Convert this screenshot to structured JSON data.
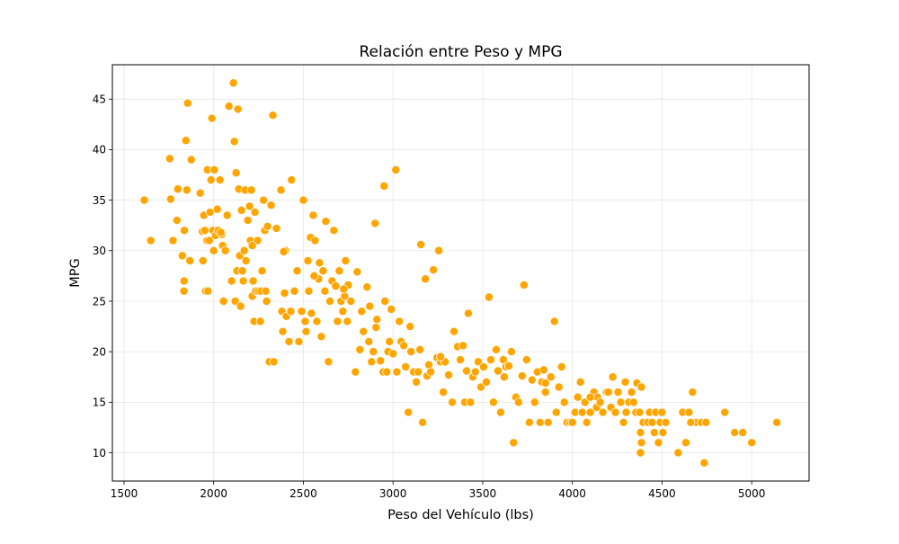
{
  "chart_data": {
    "type": "scatter",
    "title": "Relación entre Peso y MPG",
    "xlabel": "Peso del Vehículo (lbs)",
    "ylabel": "MPG",
    "xlim": [
      1435,
      5320
    ],
    "ylim": [
      7.2,
      48.4
    ],
    "xticks": [
      1500,
      2000,
      2500,
      3000,
      3500,
      4000,
      4500,
      5000
    ],
    "yticks": [
      10,
      15,
      20,
      25,
      30,
      35,
      40,
      45
    ],
    "grid": true,
    "legend": "none",
    "marker_color": "#FFA500",
    "marker_edge_color": "#ffffff",
    "points": [
      [
        1613,
        35
      ],
      [
        1649,
        31
      ],
      [
        1755,
        39.1
      ],
      [
        1760,
        35.1
      ],
      [
        1773,
        31
      ],
      [
        1795,
        33
      ],
      [
        1800,
        36.1
      ],
      [
        1825,
        29.5
      ],
      [
        1834,
        26
      ],
      [
        1835,
        27
      ],
      [
        1836,
        32
      ],
      [
        1845,
        40.9
      ],
      [
        1850,
        36
      ],
      [
        1855,
        44.6
      ],
      [
        1867,
        29
      ],
      [
        1875,
        39
      ],
      [
        1925,
        35.7
      ],
      [
        1937,
        31.9
      ],
      [
        1940,
        29
      ],
      [
        1945,
        33.5
      ],
      [
        1950,
        32
      ],
      [
        1955,
        26
      ],
      [
        1963,
        31
      ],
      [
        1965,
        38
      ],
      [
        1968,
        26
      ],
      [
        1975,
        31
      ],
      [
        1980,
        33.8
      ],
      [
        1985,
        37
      ],
      [
        1990,
        43.1
      ],
      [
        1995,
        32
      ],
      [
        2000,
        30
      ],
      [
        2003,
        38
      ],
      [
        2010,
        31.5
      ],
      [
        2020,
        34.1
      ],
      [
        2025,
        32
      ],
      [
        2035,
        37
      ],
      [
        2045,
        31.6
      ],
      [
        2050,
        30.5
      ],
      [
        2055,
        25
      ],
      [
        2065,
        30
      ],
      [
        2075,
        33.5
      ],
      [
        2085,
        44.3
      ],
      [
        2100,
        27
      ],
      [
        2110,
        46.6
      ],
      [
        2115,
        40.8
      ],
      [
        2120,
        25
      ],
      [
        2125,
        37.7
      ],
      [
        2130,
        28
      ],
      [
        2135,
        44
      ],
      [
        2140,
        36.1
      ],
      [
        2145,
        29.5
      ],
      [
        2150,
        24.5
      ],
      [
        2155,
        34
      ],
      [
        2160,
        28
      ],
      [
        2165,
        27
      ],
      [
        2170,
        30
      ],
      [
        2175,
        36
      ],
      [
        2180,
        29
      ],
      [
        2190,
        33
      ],
      [
        2200,
        34.4
      ],
      [
        2205,
        31
      ],
      [
        2210,
        36
      ],
      [
        2215,
        25.5
      ],
      [
        2220,
        27
      ],
      [
        2225,
        23
      ],
      [
        2230,
        33.8
      ],
      [
        2234,
        26
      ],
      [
        2245,
        31
      ],
      [
        2250,
        26
      ],
      [
        2260,
        23
      ],
      [
        2265,
        26
      ],
      [
        2270,
        28
      ],
      [
        2278,
        35
      ],
      [
        2285,
        32
      ],
      [
        2290,
        26
      ],
      [
        2295,
        25
      ],
      [
        2300,
        32.4
      ],
      [
        2310,
        19
      ],
      [
        2320,
        34.5
      ],
      [
        2330,
        43.4
      ],
      [
        2335,
        19
      ],
      [
        2350,
        32.2
      ],
      [
        2375,
        36
      ],
      [
        2380,
        24
      ],
      [
        2385,
        22
      ],
      [
        2395,
        25.8
      ],
      [
        2400,
        30
      ],
      [
        2405,
        23.5
      ],
      [
        2420,
        21
      ],
      [
        2430,
        24
      ],
      [
        2434,
        37
      ],
      [
        2450,
        26
      ],
      [
        2465,
        28
      ],
      [
        2475,
        21
      ],
      [
        2490,
        24
      ],
      [
        2500,
        35
      ],
      [
        2510,
        23
      ],
      [
        2515,
        22
      ],
      [
        2525,
        29
      ],
      [
        2530,
        26
      ],
      [
        2540,
        31.3
      ],
      [
        2545,
        23.8
      ],
      [
        2555,
        33.5
      ],
      [
        2565,
        31
      ],
      [
        2575,
        23
      ],
      [
        2585,
        27.2
      ],
      [
        2590,
        28.8
      ],
      [
        2600,
        21.5
      ],
      [
        2610,
        28
      ],
      [
        2620,
        26
      ],
      [
        2625,
        32.9
      ],
      [
        2640,
        19
      ],
      [
        2648,
        25
      ],
      [
        2660,
        27
      ],
      [
        2670,
        32
      ],
      [
        2680,
        26.5
      ],
      [
        2690,
        23
      ],
      [
        2700,
        28
      ],
      [
        2710,
        25
      ],
      [
        2720,
        24
      ],
      [
        2730,
        25.5
      ],
      [
        2735,
        29
      ],
      [
        2745,
        23
      ],
      [
        2750,
        26.6
      ],
      [
        2765,
        25
      ],
      [
        2790,
        18
      ],
      [
        2800,
        27.9
      ],
      [
        2815,
        20.2
      ],
      [
        2825,
        24
      ],
      [
        2835,
        22
      ],
      [
        2855,
        26.4
      ],
      [
        2865,
        21
      ],
      [
        2870,
        24.5
      ],
      [
        2880,
        19
      ],
      [
        2890,
        20
      ],
      [
        2900,
        32.7
      ],
      [
        2905,
        22.4
      ],
      [
        2910,
        23.2
      ],
      [
        2930,
        19.1
      ],
      [
        2945,
        18
      ],
      [
        2950,
        36.4
      ],
      [
        2955,
        25
      ],
      [
        2965,
        18
      ],
      [
        2972,
        20
      ],
      [
        2980,
        21
      ],
      [
        3000,
        19.8
      ],
      [
        3015,
        38
      ],
      [
        3021,
        18
      ],
      [
        3035,
        23
      ],
      [
        3045,
        21
      ],
      [
        3060,
        20.6
      ],
      [
        3070,
        18.5
      ],
      [
        3085,
        14
      ],
      [
        3100,
        20
      ],
      [
        3115,
        18
      ],
      [
        3130,
        17
      ],
      [
        3140,
        18
      ],
      [
        3150,
        20.2
      ],
      [
        3155,
        30.6
      ],
      [
        3165,
        13
      ],
      [
        3180,
        27.2
      ],
      [
        3190,
        17.6
      ],
      [
        3200,
        18.7
      ],
      [
        3210,
        18
      ],
      [
        3225,
        28.1
      ],
      [
        3245,
        19.4
      ],
      [
        3255,
        30
      ],
      [
        3265,
        19
      ],
      [
        3280,
        16
      ],
      [
        3290,
        19
      ],
      [
        3310,
        17.7
      ],
      [
        3330,
        15
      ],
      [
        3340,
        22
      ],
      [
        3360,
        20.5
      ],
      [
        3375,
        19.2
      ],
      [
        3390,
        20.6
      ],
      [
        3400,
        15
      ],
      [
        3410,
        18.1
      ],
      [
        3420,
        23.8
      ],
      [
        3432,
        15
      ],
      [
        3445,
        17.5
      ],
      [
        3459,
        18
      ],
      [
        3475,
        19
      ],
      [
        3490,
        16.5
      ],
      [
        3505,
        18.5
      ],
      [
        3520,
        17
      ],
      [
        3535,
        25.4
      ],
      [
        3545,
        19.2
      ],
      [
        3560,
        15
      ],
      [
        3575,
        20.2
      ],
      [
        3585,
        18.1
      ],
      [
        3600,
        14
      ],
      [
        3615,
        19.2
      ],
      [
        3630,
        18.5
      ],
      [
        3645,
        18.6
      ],
      [
        3660,
        20
      ],
      [
        3672,
        11
      ],
      [
        3685,
        15.5
      ],
      [
        3700,
        15
      ],
      [
        3720,
        17.6
      ],
      [
        3730,
        26.6
      ],
      [
        3745,
        19.2
      ],
      [
        3760,
        13
      ],
      [
        3775,
        17.2
      ],
      [
        3790,
        15
      ],
      [
        3805,
        18
      ],
      [
        3820,
        13
      ],
      [
        3830,
        17
      ],
      [
        3840,
        18.2
      ],
      [
        3850,
        16.9
      ],
      [
        3865,
        13
      ],
      [
        3880,
        17.5
      ],
      [
        3900,
        23
      ],
      [
        3910,
        14
      ],
      [
        3925,
        16.5
      ],
      [
        3940,
        18.5
      ],
      [
        3955,
        15
      ],
      [
        3970,
        13
      ],
      [
        3988,
        13
      ],
      [
        4000,
        13
      ],
      [
        4015,
        14
      ],
      [
        4030,
        15.5
      ],
      [
        4045,
        17
      ],
      [
        4055,
        14
      ],
      [
        4070,
        15
      ],
      [
        4080,
        13
      ],
      [
        4100,
        14
      ],
      [
        4120,
        16
      ],
      [
        4135,
        14.5
      ],
      [
        4140,
        15.5
      ],
      [
        4155,
        15
      ],
      [
        4170,
        14
      ],
      [
        4190,
        16
      ],
      [
        4205,
        16
      ],
      [
        4215,
        14.5
      ],
      [
        4225,
        17.5
      ],
      [
        4240,
        14
      ],
      [
        4255,
        16
      ],
      [
        4270,
        15
      ],
      [
        4285,
        13
      ],
      [
        4300,
        14
      ],
      [
        4315,
        15
      ],
      [
        4330,
        16
      ],
      [
        4341,
        15
      ],
      [
        4354,
        14
      ],
      [
        4360,
        16.9
      ],
      [
        4375,
        14
      ],
      [
        4385,
        16.5
      ],
      [
        4395,
        13
      ],
      [
        4420,
        13
      ],
      [
        4430,
        14
      ],
      [
        4445,
        13
      ],
      [
        4457,
        12
      ],
      [
        4464,
        14
      ],
      [
        4480,
        11
      ],
      [
        4490,
        13
      ],
      [
        4499,
        14
      ],
      [
        4505,
        12
      ],
      [
        4520,
        13
      ],
      [
        4590,
        10
      ],
      [
        4615,
        14
      ],
      [
        4633,
        11
      ],
      [
        4650,
        14
      ],
      [
        4670,
        16
      ],
      [
        4690,
        13
      ],
      [
        4720,
        13
      ],
      [
        4735,
        9
      ],
      [
        4745,
        13
      ],
      [
        4850,
        14
      ],
      [
        4905,
        12
      ],
      [
        4950,
        12
      ],
      [
        5000,
        11
      ],
      [
        5140,
        13
      ],
      [
        4380,
        10
      ],
      [
        4385,
        11
      ],
      [
        4660,
        13
      ],
      [
        4380,
        12
      ],
      [
        4295,
        17
      ],
      [
        4100,
        15.5
      ],
      [
        4200,
        16
      ],
      [
        3850,
        16
      ],
      [
        3620,
        17.5
      ],
      [
        3265,
        19.5
      ],
      [
        3095,
        22.5
      ],
      [
        2990,
        24.2
      ],
      [
        2725,
        26.2
      ],
      [
        2560,
        27.5
      ],
      [
        2390,
        29.9
      ],
      [
        2215,
        30.5
      ],
      [
        2040,
        31.8
      ]
    ]
  }
}
